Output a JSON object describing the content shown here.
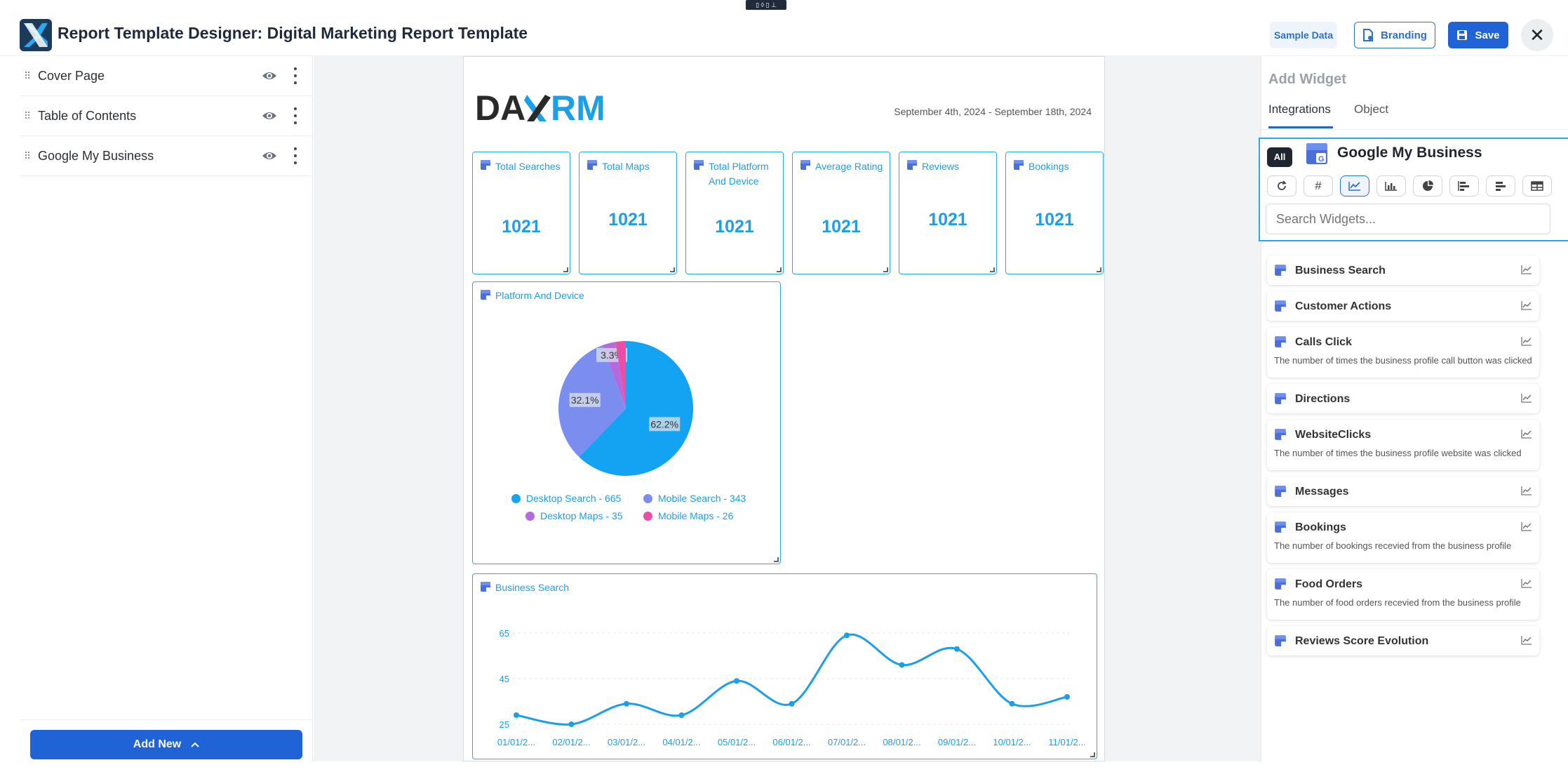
{
  "header": {
    "title": "Report Template Designer: Digital Marketing Report Template",
    "top_pill": "▯ ◊ ▯ ⊥",
    "sample_data_label": "Sample Data",
    "branding_label": "Branding",
    "save_label": "Save"
  },
  "sidebar": {
    "items": [
      {
        "label": "Cover Page"
      },
      {
        "label": "Table of Contents"
      },
      {
        "label": "Google My Business"
      }
    ],
    "add_new_label": "Add New"
  },
  "report": {
    "date_range": "September 4th, 2024 - September 18th, 2024",
    "stats": [
      {
        "title": "Total Searches",
        "value": "1021"
      },
      {
        "title": "Total Maps",
        "value": "1021"
      },
      {
        "title": "Total Platform And Device",
        "value": "1021"
      },
      {
        "title": "Average Rating",
        "value": "1021"
      },
      {
        "title": "Reviews",
        "value": "1021"
      },
      {
        "title": "Bookings",
        "value": "1021"
      }
    ],
    "pie_title": "Platform And Device",
    "line_title": "Business Search"
  },
  "chart_data": [
    {
      "type": "pie",
      "title": "Platform And Device",
      "slices": [
        {
          "label": "Desktop Search - 665",
          "value": 665,
          "pct": "62.2%",
          "color": "#14a3f3"
        },
        {
          "label": "Mobile Search - 343",
          "value": 343,
          "pct": "32.1%",
          "color": "#7b8ef0"
        },
        {
          "label": "Desktop Maps - 35",
          "value": 35,
          "pct": "3.3%",
          "color": "#b469df"
        },
        {
          "label": "Mobile Maps - 26",
          "value": 26,
          "pct": "",
          "color": "#ea4fa8"
        }
      ]
    },
    {
      "type": "line",
      "title": "Business Search",
      "categories": [
        "01/01/2...",
        "02/01/2...",
        "03/01/2...",
        "04/01/2...",
        "05/01/2...",
        "06/01/2...",
        "07/01/2...",
        "08/01/2...",
        "09/01/2...",
        "10/01/2...",
        "11/01/2..."
      ],
      "values": [
        29,
        25,
        34,
        29,
        44,
        34,
        64,
        51,
        58,
        34,
        37
      ],
      "yticks": [
        25,
        45,
        65
      ],
      "ylim": [
        25,
        65
      ],
      "color": "#1a9fe8",
      "grid": true
    }
  ],
  "rpanel": {
    "title": "Add Widget",
    "tabs": [
      "Integrations",
      "Object"
    ],
    "all_label": "All",
    "integration_name": "Google My Business",
    "filters": [
      "refresh-icon",
      "hash-icon",
      "line-chart-icon",
      "bar-chart-icon",
      "pie-chart-icon",
      "column-chart-icon",
      "horizontal-bar-icon",
      "table-icon"
    ],
    "search_placeholder": "Search Widgets...",
    "widgets": [
      {
        "name": "Business Search",
        "desc": ""
      },
      {
        "name": "Customer Actions",
        "desc": ""
      },
      {
        "name": "Calls Click",
        "desc": "The number of times the business profile call button was clicked"
      },
      {
        "name": "Directions",
        "desc": ""
      },
      {
        "name": "WebsiteClicks",
        "desc": "The number of times the business profile website was clicked"
      },
      {
        "name": "Messages",
        "desc": ""
      },
      {
        "name": "Bookings",
        "desc": "The number of bookings recevied from the business profile"
      },
      {
        "name": "Food Orders",
        "desc": "The number of food orders recevied from the business profile"
      },
      {
        "name": "Reviews Score Evolution",
        "desc": ""
      }
    ]
  },
  "colors": {
    "accent": "#1a9fe8",
    "primary": "#1f63d6"
  }
}
